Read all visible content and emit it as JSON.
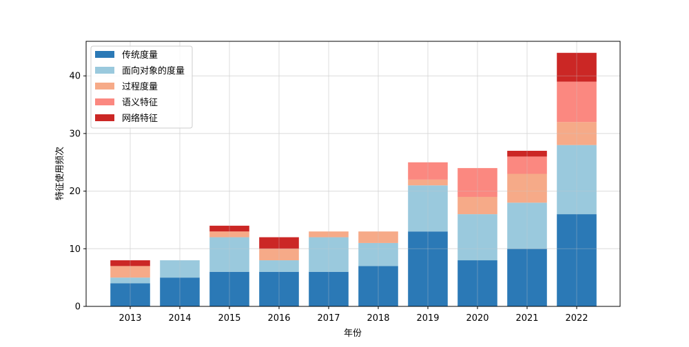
{
  "chart_data": {
    "type": "bar",
    "stacked": true,
    "categories": [
      "2013",
      "2014",
      "2015",
      "2016",
      "2017",
      "2018",
      "2019",
      "2020",
      "2021",
      "2022"
    ],
    "series": [
      {
        "name": "传统度量",
        "color": "#2b79b6",
        "values": [
          4,
          5,
          6,
          6,
          6,
          7,
          13,
          8,
          10,
          16
        ]
      },
      {
        "name": "面向对象的度量",
        "color": "#9ac9dd",
        "values": [
          1,
          3,
          6,
          2,
          6,
          4,
          8,
          8,
          8,
          12
        ]
      },
      {
        "name": "过程度量",
        "color": "#f6aa88",
        "values": [
          2,
          0,
          1,
          2,
          1,
          2,
          1,
          3,
          5,
          4
        ]
      },
      {
        "name": "语义特征",
        "color": "#fb8880",
        "values": [
          0,
          0,
          0,
          0,
          0,
          0,
          3,
          5,
          3,
          7
        ]
      },
      {
        "name": "网络特征",
        "color": "#cb2725",
        "values": [
          1,
          0,
          1,
          2,
          0,
          0,
          0,
          0,
          1,
          5
        ]
      }
    ],
    "xlabel": "年份",
    "ylabel": "特征使用频次",
    "ylim": [
      0,
      46
    ],
    "yticks": [
      0,
      10,
      20,
      30,
      40
    ],
    "grid": true,
    "legend_position": "top-left"
  }
}
